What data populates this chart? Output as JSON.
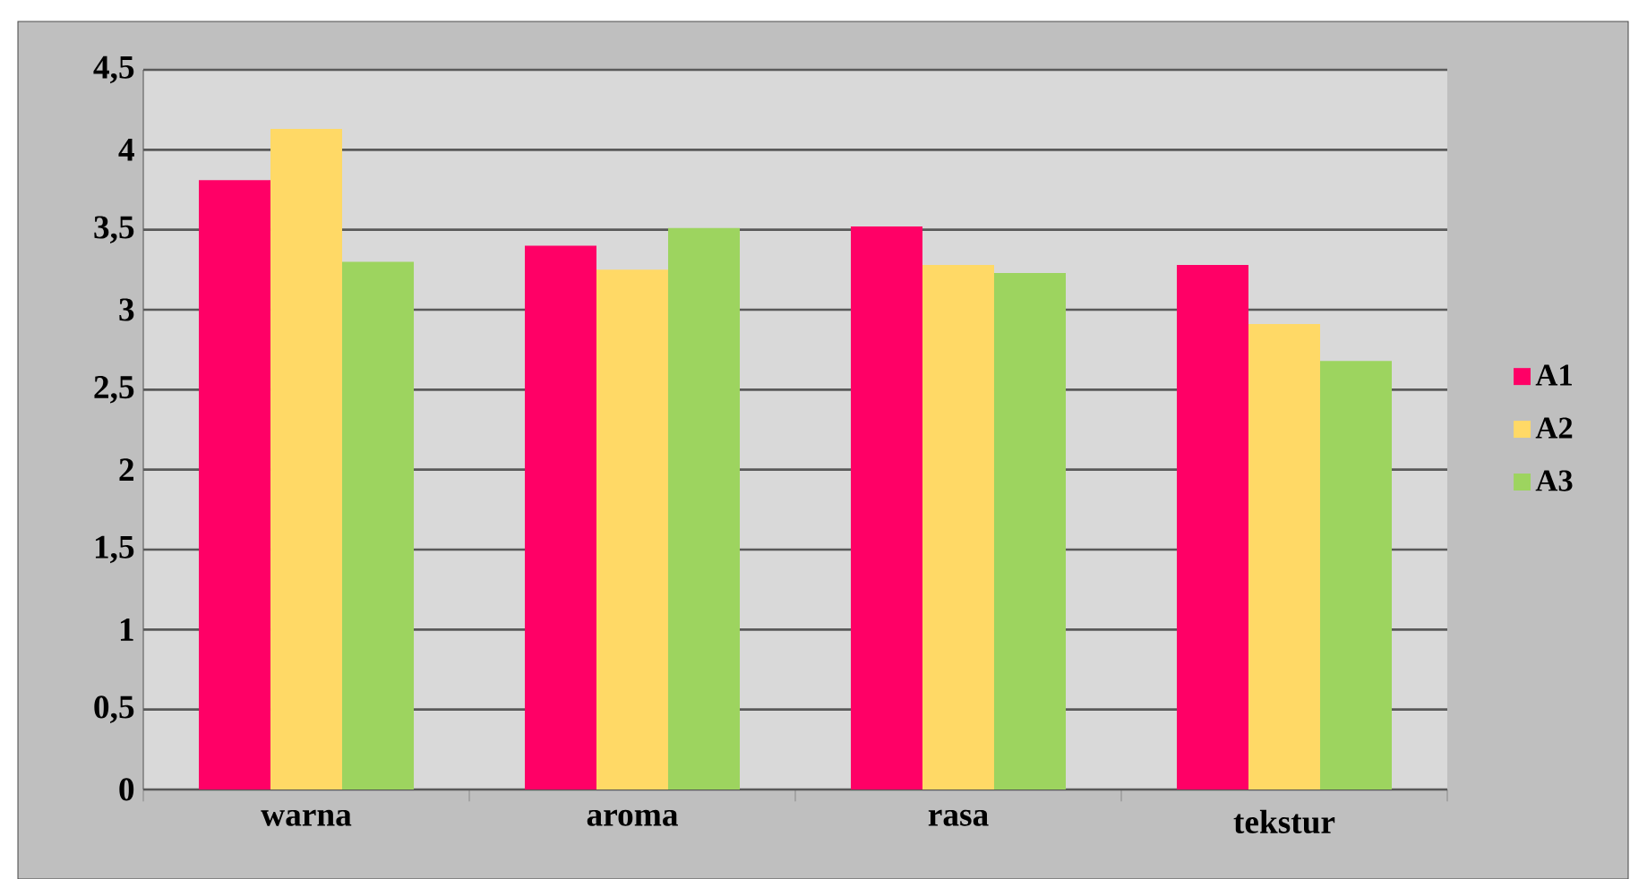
{
  "chart_data": {
    "type": "bar",
    "categories": [
      "warna",
      "aroma",
      "rasa",
      "tekstur"
    ],
    "series": [
      {
        "name": "A1",
        "color": "#ff0066",
        "values": [
          3.81,
          3.4,
          3.52,
          3.28
        ]
      },
      {
        "name": "A2",
        "color": "#ffd966",
        "values": [
          4.13,
          3.25,
          3.28,
          2.91
        ]
      },
      {
        "name": "A3",
        "color": "#9dd45f",
        "values": [
          3.3,
          3.51,
          3.23,
          2.68
        ]
      }
    ],
    "ylim": [
      0,
      4.5
    ],
    "yticks": [
      0,
      {
        "value": 0.5,
        "label": "0,5"
      },
      1,
      {
        "value": 1.5,
        "label": "1,5"
      },
      2,
      {
        "value": 2.5,
        "label": "2,5"
      },
      3,
      {
        "value": 3.5,
        "label": "3,5"
      },
      4,
      {
        "value": 4.5,
        "label": "4,5"
      }
    ],
    "grid": "y",
    "legend": "right"
  }
}
